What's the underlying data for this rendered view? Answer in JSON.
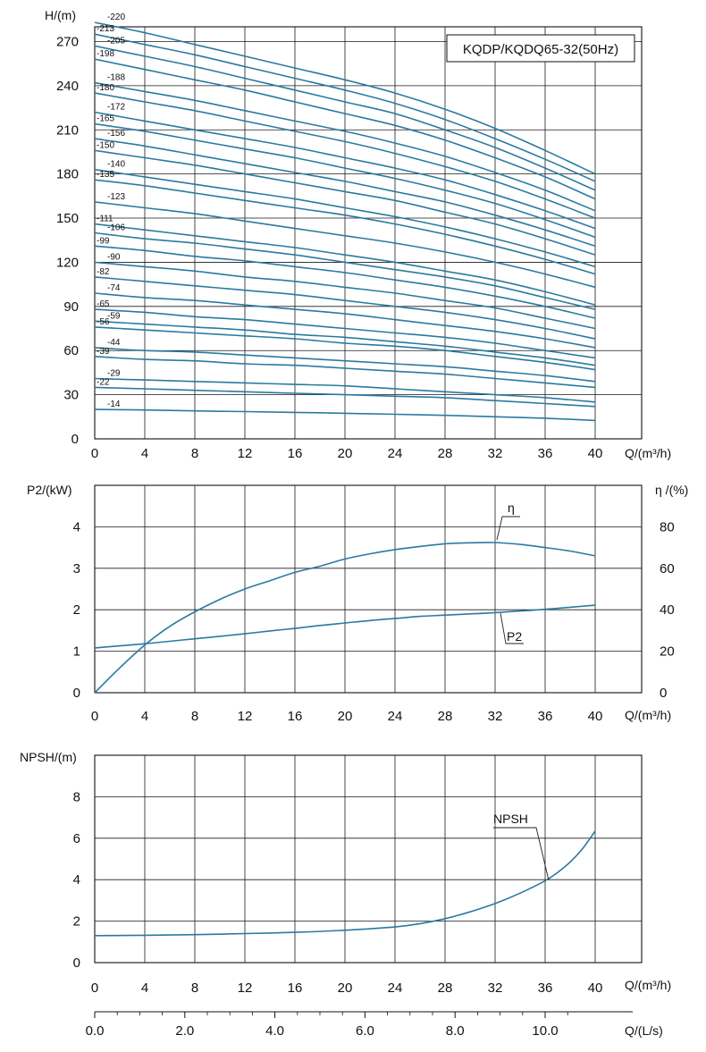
{
  "chart_data": [
    {
      "type": "line",
      "title": "KQDP/KQDQ65-32(50Hz)",
      "xlabel": "Q/(m³/h)",
      "ylabel": "H/(m)",
      "xlim": [
        0,
        40
      ],
      "ylim": [
        0,
        280
      ],
      "xticks": [
        0,
        4,
        8,
        12,
        16,
        20,
        24,
        28,
        32,
        36,
        40
      ],
      "yticks": [
        0,
        30,
        60,
        90,
        120,
        150,
        180,
        210,
        240,
        270
      ],
      "grid": true,
      "x": [
        0,
        4,
        8,
        12,
        16,
        20,
        24,
        28,
        32,
        36,
        40
      ],
      "series": [
        {
          "name": "220",
          "values": [
            283,
            276,
            268,
            260,
            252,
            244,
            235,
            224,
            211,
            196,
            180
          ]
        },
        {
          "name": "213",
          "values": [
            275,
            268,
            261,
            253,
            245,
            237,
            228,
            217,
            204,
            190,
            175
          ]
        },
        {
          "name": "205",
          "values": [
            267,
            260,
            253,
            245,
            237,
            229,
            221,
            210,
            198,
            184,
            169
          ]
        },
        {
          "name": "198",
          "values": [
            258,
            251,
            244,
            237,
            229,
            221,
            213,
            203,
            191,
            178,
            163
          ]
        },
        {
          "name": "188",
          "values": [
            242,
            236,
            230,
            223,
            216,
            209,
            201,
            192,
            181,
            169,
            155
          ]
        },
        {
          "name": "180",
          "values": [
            235,
            229,
            223,
            216,
            209,
            202,
            194,
            185,
            175,
            163,
            150
          ]
        },
        {
          "name": "172",
          "values": [
            222,
            216,
            210,
            204,
            198,
            191,
            184,
            176,
            166,
            155,
            143
          ]
        },
        {
          "name": "165",
          "values": [
            214,
            209,
            203,
            197,
            191,
            184,
            177,
            169,
            160,
            149,
            137
          ]
        },
        {
          "name": "156",
          "values": [
            204,
            199,
            193,
            187,
            181,
            175,
            168,
            161,
            152,
            142,
            131
          ]
        },
        {
          "name": "150",
          "values": [
            196,
            191,
            186,
            180,
            174,
            168,
            162,
            154,
            146,
            136,
            125
          ]
        },
        {
          "name": "140",
          "values": [
            183,
            178,
            173,
            168,
            163,
            157,
            151,
            144,
            136,
            127,
            117
          ]
        },
        {
          "name": "135",
          "values": [
            176,
            172,
            167,
            162,
            157,
            152,
            146,
            139,
            131,
            122,
            112
          ]
        },
        {
          "name": "123",
          "values": [
            161,
            157,
            153,
            148,
            143,
            138,
            133,
            127,
            120,
            112,
            103
          ]
        },
        {
          "name": "111",
          "values": [
            146,
            142,
            138,
            134,
            130,
            125,
            120,
            114,
            108,
            100,
            91
          ]
        },
        {
          "name": "106",
          "values": [
            140,
            136,
            133,
            129,
            125,
            120,
            115,
            110,
            104,
            96,
            88
          ]
        },
        {
          "name": "99",
          "values": [
            131,
            128,
            124,
            121,
            117,
            113,
            108,
            103,
            97,
            90,
            82
          ]
        },
        {
          "name": "90",
          "values": [
            120,
            117,
            114,
            110,
            107,
            103,
            99,
            94,
            89,
            82,
            75
          ]
        },
        {
          "name": "82",
          "values": [
            110,
            107,
            104,
            101,
            98,
            94,
            90,
            86,
            81,
            75,
            68
          ]
        },
        {
          "name": "74",
          "values": [
            99,
            96,
            94,
            91,
            88,
            85,
            81,
            77,
            73,
            68,
            62
          ]
        },
        {
          "name": "65",
          "values": [
            88,
            86,
            83,
            81,
            78,
            75,
            72,
            69,
            65,
            60,
            55
          ]
        },
        {
          "name": "59",
          "values": [
            80,
            78,
            76,
            74,
            71,
            69,
            66,
            63,
            59,
            55,
            50
          ]
        },
        {
          "name": "56",
          "values": [
            76,
            74,
            72,
            70,
            68,
            65,
            63,
            60,
            56,
            52,
            47
          ]
        },
        {
          "name": "44",
          "values": [
            62,
            60,
            59,
            57,
            55,
            53,
            51,
            49,
            46,
            43,
            39
          ]
        },
        {
          "name": "39",
          "values": [
            56,
            54,
            53,
            51,
            50,
            48,
            46,
            44,
            41,
            38,
            35
          ]
        },
        {
          "name": "29",
          "values": [
            41,
            40,
            39,
            38,
            37,
            36,
            34,
            32,
            30,
            28,
            25
          ]
        },
        {
          "name": "22",
          "values": [
            35,
            34,
            33,
            32,
            31,
            30,
            29,
            28,
            26,
            24,
            22
          ]
        },
        {
          "name": "14",
          "values": [
            20,
            19.6,
            19,
            18.5,
            18,
            17.4,
            16.7,
            16,
            15,
            14,
            12.5
          ]
        }
      ]
    },
    {
      "type": "line",
      "xlabel": "Q/(m³/h)",
      "ylabel": "P2/(kW)",
      "ylabel_right": "η /(%)",
      "xlim": [
        0,
        40
      ],
      "ylim": [
        0,
        5
      ],
      "ylim_right": [
        0,
        100
      ],
      "xticks": [
        0,
        4,
        8,
        12,
        16,
        20,
        24,
        28,
        32,
        36,
        40
      ],
      "yticks": [
        0,
        1,
        2,
        3,
        4
      ],
      "yticks_right": [
        0,
        20,
        40,
        60,
        80
      ],
      "grid": true,
      "x": [
        0,
        2,
        4,
        6,
        8,
        10,
        12,
        14,
        16,
        18,
        20,
        22,
        24,
        26,
        28,
        30,
        32,
        34,
        36,
        38,
        40
      ],
      "series": [
        {
          "name": "η",
          "axis": "right",
          "values": [
            0,
            12,
            23,
            32,
            39,
            45,
            50,
            54,
            58,
            61,
            64.5,
            67,
            69,
            70.5,
            71.8,
            72.3,
            72.4,
            71.5,
            70,
            68.3,
            66
          ]
        },
        {
          "name": "P2",
          "axis": "left",
          "values": [
            1.08,
            1.13,
            1.18,
            1.24,
            1.3,
            1.36,
            1.42,
            1.49,
            1.55,
            1.62,
            1.68,
            1.74,
            1.79,
            1.84,
            1.87,
            1.9,
            1.93,
            1.97,
            2.01,
            2.06,
            2.11
          ]
        }
      ]
    },
    {
      "type": "line",
      "xlabel": "Q/(m³/h)",
      "ylabel": "NPSH/(m)",
      "xlim": [
        0,
        40
      ],
      "ylim": [
        0,
        10
      ],
      "xticks": [
        0,
        4,
        8,
        12,
        16,
        20,
        24,
        28,
        32,
        36,
        40
      ],
      "yticks": [
        0,
        2,
        4,
        6,
        8
      ],
      "grid": true,
      "x2label": "Q/(L/s)",
      "x2ticks": [
        "0.0",
        "2.0",
        "4.0",
        "6.0",
        "8.0",
        "10.0"
      ],
      "x": [
        0,
        4,
        8,
        12,
        16,
        20,
        24,
        26,
        28,
        30,
        32,
        34,
        36,
        37,
        38,
        39,
        40
      ],
      "series": [
        {
          "name": "NPSH",
          "values": [
            1.3,
            1.32,
            1.35,
            1.4,
            1.46,
            1.56,
            1.72,
            1.88,
            2.12,
            2.45,
            2.85,
            3.35,
            3.95,
            4.35,
            4.85,
            5.5,
            6.35
          ]
        }
      ]
    }
  ]
}
